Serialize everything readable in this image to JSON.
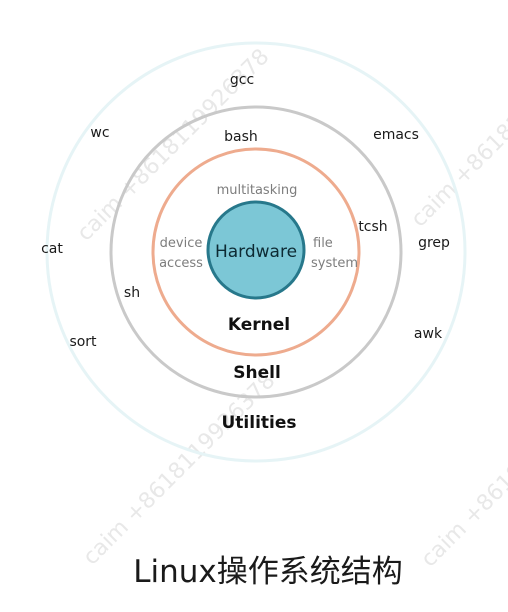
{
  "watermark": "caim +8618119926378",
  "rings": {
    "utilities": {
      "title": "Utilities",
      "commands": [
        "gcc",
        "wc",
        "emacs",
        "cat",
        "grep",
        "sort",
        "awk"
      ]
    },
    "shell": {
      "title": "Shell",
      "commands": [
        "bash",
        "tcsh",
        "sh"
      ]
    },
    "kernel": {
      "title": "Kernel",
      "functions": [
        {
          "lines": [
            "multitasking"
          ]
        },
        {
          "lines": [
            "device",
            "access"
          ]
        },
        {
          "lines": [
            "file",
            "system"
          ]
        }
      ]
    },
    "hardware": {
      "title": "Hardware"
    }
  },
  "colors": {
    "utilities_ring": "#e6f4f6",
    "shell_ring": "#c9c9c9",
    "kernel_ring": "#eeab8e",
    "hardware_fill": "#7cc7d6",
    "hardware_stroke": "#27788b"
  },
  "caption": "Linux操作系统结构"
}
